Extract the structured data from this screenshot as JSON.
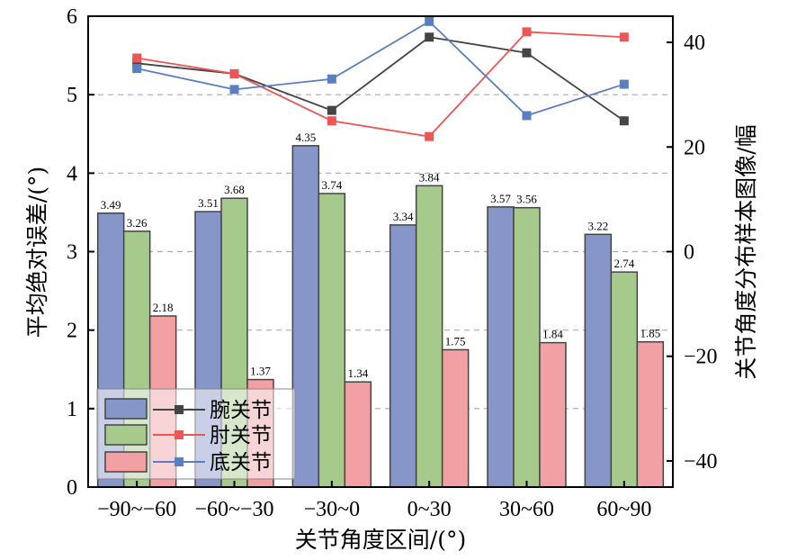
{
  "chart_data": {
    "type": "bar+line",
    "categories": [
      "−90~−60",
      "−60~−30",
      "−30~0",
      "0~30",
      "30~60",
      "60~90"
    ],
    "xlabel": "关节角度区间/(°)",
    "ylabel_left": "平均绝对误差/(°)",
    "ylabel_right": "关节角度分布样本图像/幅",
    "ylim_left": [
      0,
      6
    ],
    "ylim_right": [
      -45,
      45
    ],
    "yticks_left": [
      0,
      1,
      2,
      3,
      4,
      5,
      6
    ],
    "yticks_right": [
      -40,
      -20,
      0,
      20,
      40
    ],
    "gridlines_left": [
      1,
      2,
      3,
      4,
      5
    ],
    "bar_series": [
      {
        "name": "腕关节",
        "color": "#8696c8",
        "values": [
          3.49,
          3.51,
          4.35,
          3.34,
          3.57,
          3.22
        ],
        "labels": [
          "3.49",
          "3.51",
          "4.35",
          "3.34",
          "3.57",
          "3.22"
        ]
      },
      {
        "name": "肘关节",
        "color": "#a6c98c",
        "values": [
          3.26,
          3.68,
          3.74,
          3.84,
          3.56,
          2.74
        ],
        "labels": [
          "3.26",
          "3.68",
          "3.74",
          "3.84",
          "3.56",
          "2.74"
        ]
      },
      {
        "name": "底关节",
        "color": "#f2a0a4",
        "values": [
          2.18,
          1.37,
          1.34,
          1.75,
          1.84,
          1.85
        ],
        "labels": [
          "2.18",
          "1.37",
          "1.34",
          "1.75",
          "1.84",
          "1.85"
        ]
      }
    ],
    "line_series": [
      {
        "name": "腕关节",
        "color": "#444444",
        "values": [
          36,
          34,
          27,
          41,
          38,
          25
        ]
      },
      {
        "name": "肘关节",
        "color": "#ee5555",
        "values": [
          37,
          34,
          25,
          22,
          42,
          41
        ]
      },
      {
        "name": "底关节",
        "color": "#5a7ec2",
        "values": [
          35,
          31,
          33,
          44,
          26,
          32
        ]
      }
    ],
    "legend": {
      "position": "bottom-left"
    }
  }
}
